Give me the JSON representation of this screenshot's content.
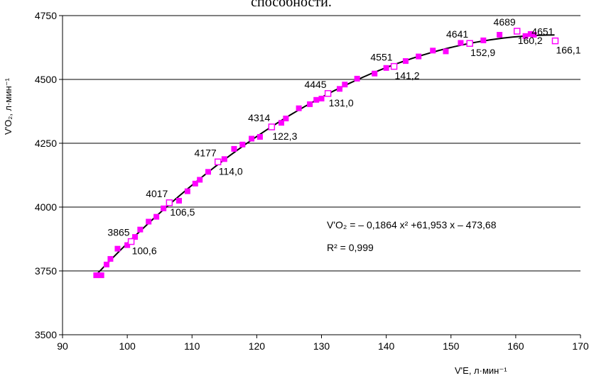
{
  "caption_fragment": "способности.",
  "chart_data": {
    "type": "scatter",
    "xlabel": "V'E, л·мин⁻¹",
    "ylabel": "V'O₂, л·мин⁻¹",
    "xlim": [
      90,
      170
    ],
    "ylim": [
      3500,
      4750
    ],
    "x_ticks": [
      "90",
      "100",
      "110",
      "120",
      "130",
      "140",
      "150",
      "160",
      "170"
    ],
    "y_ticks": [
      "3500",
      "3750",
      "4000",
      "4250",
      "4500",
      "4750"
    ],
    "grid": "horizontal",
    "equation": "V'O₂ = – 0,1864 x² +61,953 x – 473,68",
    "r_squared": "R² = 0,999",
    "colors": {
      "marker": "#ff00ff",
      "line": "#000000",
      "grid": "#000000"
    },
    "series": [
      {
        "marker": "filled-square",
        "points": [
          [
            95.2,
            3733
          ],
          [
            96.0,
            3733
          ],
          [
            96.8,
            3775
          ],
          [
            97.4,
            3797
          ],
          [
            98.5,
            3837
          ],
          [
            100.0,
            3851
          ],
          [
            101.2,
            3883
          ],
          [
            102.0,
            3912
          ],
          [
            103.3,
            3943
          ],
          [
            104.5,
            3962
          ],
          [
            105.6,
            3995
          ],
          [
            108.0,
            4025
          ],
          [
            109.3,
            4062
          ],
          [
            110.5,
            4092
          ],
          [
            111.2,
            4107
          ],
          [
            112.5,
            4138
          ],
          [
            115.0,
            4188
          ],
          [
            116.5,
            4228
          ],
          [
            117.8,
            4245
          ],
          [
            119.2,
            4268
          ],
          [
            120.5,
            4275
          ],
          [
            123.8,
            4330
          ],
          [
            124.5,
            4347
          ],
          [
            126.5,
            4387
          ],
          [
            128.2,
            4403
          ],
          [
            129.2,
            4420
          ],
          [
            130.0,
            4425
          ],
          [
            132.8,
            4463
          ],
          [
            133.6,
            4480
          ],
          [
            135.5,
            4503
          ],
          [
            138.2,
            4523
          ],
          [
            140.0,
            4545
          ],
          [
            143.0,
            4572
          ],
          [
            145.0,
            4590
          ],
          [
            147.2,
            4613
          ],
          [
            149.2,
            4610
          ],
          [
            151.5,
            4643
          ],
          [
            155.0,
            4653
          ],
          [
            157.5,
            4675
          ],
          [
            161.5,
            4670
          ],
          [
            162.3,
            4678
          ],
          [
            162.8,
            4675
          ]
        ]
      },
      {
        "marker": "open-square",
        "points": [
          {
            "x": 100.6,
            "y": 3865,
            "ylabel": "3865",
            "xlabel": "100,6"
          },
          {
            "x": 106.5,
            "y": 4017,
            "ylabel": "4017",
            "xlabel": "106,5"
          },
          {
            "x": 114.0,
            "y": 4177,
            "ylabel": "4177",
            "xlabel": "114,0"
          },
          {
            "x": 122.3,
            "y": 4314,
            "ylabel": "4314",
            "xlabel": "122,3"
          },
          {
            "x": 131.0,
            "y": 4445,
            "ylabel": "4445",
            "xlabel": "131,0"
          },
          {
            "x": 141.2,
            "y": 4551,
            "ylabel": "4551",
            "xlabel": "141,2"
          },
          {
            "x": 152.9,
            "y": 4641,
            "ylabel": "4641",
            "xlabel": "152,9"
          },
          {
            "x": 160.2,
            "y": 4689,
            "ylabel": "4689",
            "xlabel": "160,2"
          },
          {
            "x": 166.1,
            "y": 4651,
            "ylabel": "4651",
            "xlabel": "166,1"
          }
        ]
      }
    ]
  }
}
